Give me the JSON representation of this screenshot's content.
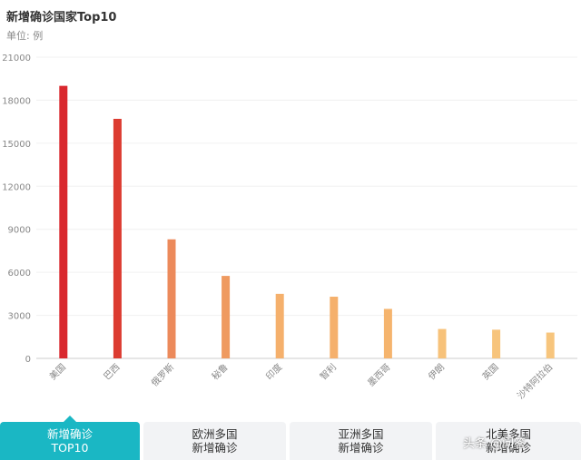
{
  "header": {
    "title": "新增确诊国家Top10",
    "unit": "单位: 例"
  },
  "chart_data": {
    "type": "bar",
    "categories": [
      "美国",
      "巴西",
      "俄罗斯",
      "秘鲁",
      "印度",
      "智利",
      "墨西哥",
      "伊朗",
      "英国",
      "沙特阿拉伯"
    ],
    "values": [
      19000,
      16700,
      8300,
      5750,
      4500,
      4300,
      3450,
      2050,
      2000,
      1800
    ],
    "ylim": [
      0,
      21000
    ],
    "yticks": [
      0,
      3000,
      6000,
      9000,
      12000,
      15000,
      18000,
      21000
    ],
    "grid": true,
    "colors": [
      "#d9282e",
      "#dc3b30",
      "#ec8a5b",
      "#ef9a60",
      "#f5b06c",
      "#f5b06c",
      "#f5b46d",
      "#f7c27a",
      "#f7c47c",
      "#f7c57d"
    ]
  },
  "tabs": [
    {
      "line1": "新增确诊",
      "line2": "TOP10",
      "active": true
    },
    {
      "line1": "欧洲多国",
      "line2": "新增确诊",
      "active": false
    },
    {
      "line1": "亚洲多国",
      "line2": "新增确诊",
      "active": false
    },
    {
      "line1": "北美多国",
      "line2": "新增确诊",
      "active": false
    }
  ],
  "watermark": "头条 @问答"
}
